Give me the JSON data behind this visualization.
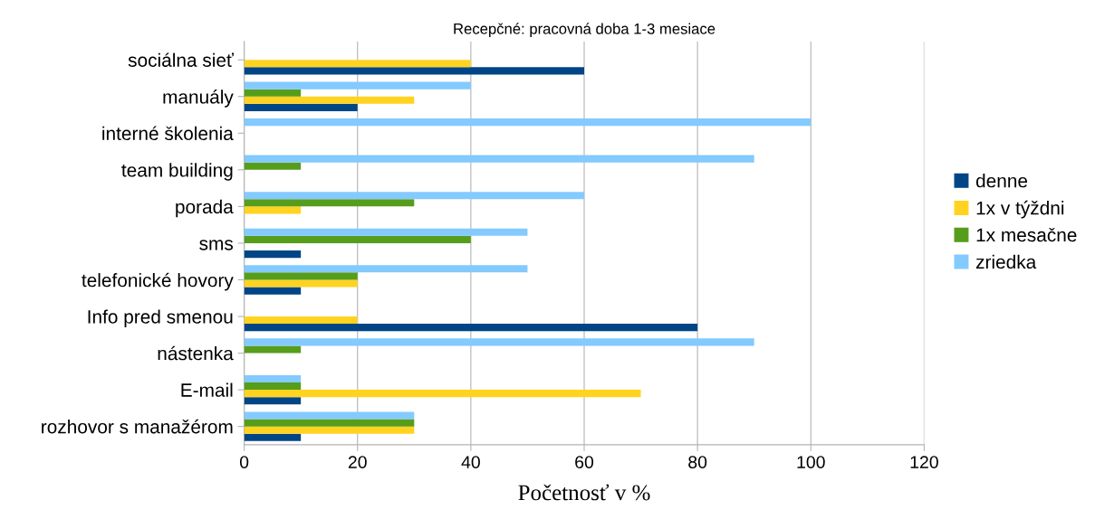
{
  "chart_data": {
    "type": "bar",
    "orientation": "horizontal",
    "title": "Recepčné: pracovná doba 1-3 mesiace",
    "xlabel": "Početnosť v %",
    "categories": [
      "sociálna sieť",
      "manuály",
      "interné školenia",
      "team building",
      "porada",
      "sms",
      "telefonické hovory",
      "Info pred smenou",
      "nástenka",
      "E-mail",
      "rozhovor s manažérom"
    ],
    "series": [
      {
        "name": "denne",
        "color": "#004586",
        "values": [
          60,
          20,
          0,
          0,
          0,
          10,
          10,
          80,
          0,
          10,
          10
        ]
      },
      {
        "name": "1x v týždni",
        "color": "#ffd320",
        "values": [
          40,
          30,
          0,
          0,
          10,
          0,
          20,
          20,
          0,
          70,
          30
        ]
      },
      {
        "name": "1x mesačne",
        "color": "#579d1c",
        "values": [
          0,
          10,
          0,
          10,
          30,
          40,
          20,
          0,
          10,
          10,
          30
        ]
      },
      {
        "name": "zriedka",
        "color": "#83caff",
        "values": [
          0,
          40,
          100,
          90,
          60,
          50,
          50,
          0,
          90,
          10,
          30
        ]
      }
    ],
    "xlim": [
      0,
      120
    ],
    "xticks": [
      0,
      20,
      40,
      60,
      80,
      100,
      120
    ],
    "grid": "x",
    "legend": "right"
  }
}
